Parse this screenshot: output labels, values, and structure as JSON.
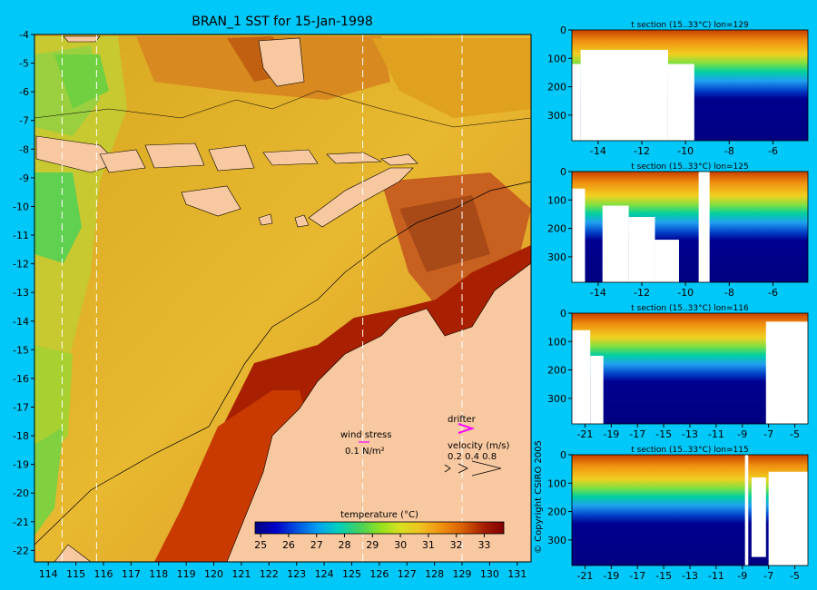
{
  "copyright": "© Copyright CSIRO 2005",
  "chart_data": [
    {
      "type": "heatmap",
      "title": "BRAN_1 SST for 15-Jan-1998",
      "x_ticks": [
        114,
        115,
        116,
        117,
        118,
        119,
        120,
        121,
        122,
        123,
        124,
        125,
        126,
        127,
        128,
        129,
        130,
        131
      ],
      "y_ticks": [
        -4,
        -5,
        -6,
        -7,
        -8,
        -9,
        -10,
        -11,
        -12,
        -13,
        -14,
        -15,
        -16,
        -17,
        -18,
        -19,
        -20,
        -21,
        -22
      ],
      "xlim": [
        113.5,
        131.5
      ],
      "ylim": [
        -22.4,
        -4
      ],
      "colorbar": {
        "label": "temperature (°C)",
        "ticks": [
          25,
          26,
          27,
          28,
          29,
          30,
          31,
          32,
          33
        ],
        "range": [
          24.8,
          33.7
        ],
        "colors": [
          "#000080",
          "#0000c8",
          "#0050e0",
          "#00a0f0",
          "#00d0c0",
          "#40d060",
          "#90e020",
          "#d8e020",
          "#f0c020",
          "#f09010",
          "#d86000",
          "#a82000",
          "#800000"
        ]
      },
      "section_lines_lon": [
        114.5,
        115.75,
        125.4,
        129
      ],
      "legend": {
        "wind_stress_label": "wind stress",
        "wind_stress_scale": "0.1 N/m²",
        "drifter_label": "drifter",
        "velocity_label": "velocity (m/s)",
        "velocity_scale": "0.2 0.4 0.8"
      }
    },
    {
      "type": "heatmap",
      "title": "t section (15..33°C) lon=129",
      "x_ticks": [
        -14,
        -12,
        -10,
        -8,
        -6
      ],
      "y_ticks": [
        0,
        100,
        200,
        300
      ],
      "xlim": [
        -15.2,
        -4.4
      ],
      "ylim": [
        390,
        0
      ]
    },
    {
      "type": "heatmap",
      "title": "t section (15..33°C) lon=125",
      "x_ticks": [
        -14,
        -12,
        -10,
        -8,
        -6
      ],
      "y_ticks": [
        0,
        100,
        200,
        300
      ],
      "xlim": [
        -15.2,
        -4.4
      ],
      "ylim": [
        390,
        0
      ]
    },
    {
      "type": "heatmap",
      "title": "t section (15..33°C) lon=116",
      "x_ticks": [
        -21,
        -19,
        -17,
        -15,
        -13,
        -11,
        -9,
        -7,
        -5
      ],
      "y_ticks": [
        0,
        100,
        200,
        300
      ],
      "xlim": [
        -22,
        -4
      ],
      "ylim": [
        390,
        0
      ]
    },
    {
      "type": "heatmap",
      "title": "t section (15..33°C) lon=115",
      "x_ticks": [
        -21,
        -19,
        -17,
        -15,
        -13,
        -11,
        -9,
        -7,
        -5
      ],
      "y_ticks": [
        0,
        100,
        200,
        300
      ],
      "xlim": [
        -22,
        -4
      ],
      "ylim": [
        390,
        0
      ]
    }
  ]
}
